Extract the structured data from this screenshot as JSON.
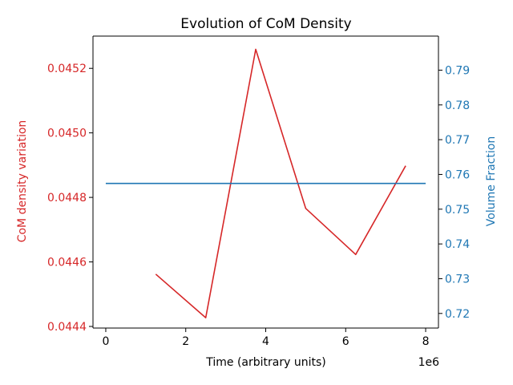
{
  "chart_data": {
    "type": "line",
    "title": "Evolution of CoM Density",
    "xlabel": "Time (arbitrary units)",
    "x_offset_label": "1e6",
    "xlim": [
      -320000,
      8320000
    ],
    "x_ticks": [
      0,
      2000000,
      4000000,
      6000000,
      8000000
    ],
    "x_tick_labels": [
      "0",
      "2",
      "4",
      "6",
      "8"
    ],
    "grid": false,
    "left_axis": {
      "label": "CoM density variation",
      "color": "#d62728",
      "ylim": [
        0.044395,
        0.0453
      ],
      "ticks": [
        0.0444,
        0.0446,
        0.0448,
        0.045,
        0.0452
      ],
      "tick_labels": [
        "0.0444",
        "0.0446",
        "0.0448",
        "0.0450",
        "0.0452"
      ]
    },
    "right_axis": {
      "label": "Volume Fraction",
      "color": "#1f77b4",
      "ylim": [
        0.7158,
        0.7998
      ],
      "ticks": [
        0.72,
        0.73,
        0.74,
        0.75,
        0.76,
        0.77,
        0.78,
        0.79
      ],
      "tick_labels": [
        "0.72",
        "0.73",
        "0.74",
        "0.75",
        "0.76",
        "0.77",
        "0.78",
        "0.79"
      ]
    },
    "series": [
      {
        "axis": "left",
        "color": "#d62728",
        "x": [
          1250000,
          2500000,
          3750000,
          5000000,
          6250000,
          7500000
        ],
        "y": [
          0.044562,
          0.044427,
          0.045259,
          0.044766,
          0.044623,
          0.044898
        ]
      },
      {
        "axis": "right",
        "color": "#1f77b4",
        "x": [
          0,
          8000000
        ],
        "y": [
          0.7574,
          0.7574
        ]
      }
    ]
  }
}
